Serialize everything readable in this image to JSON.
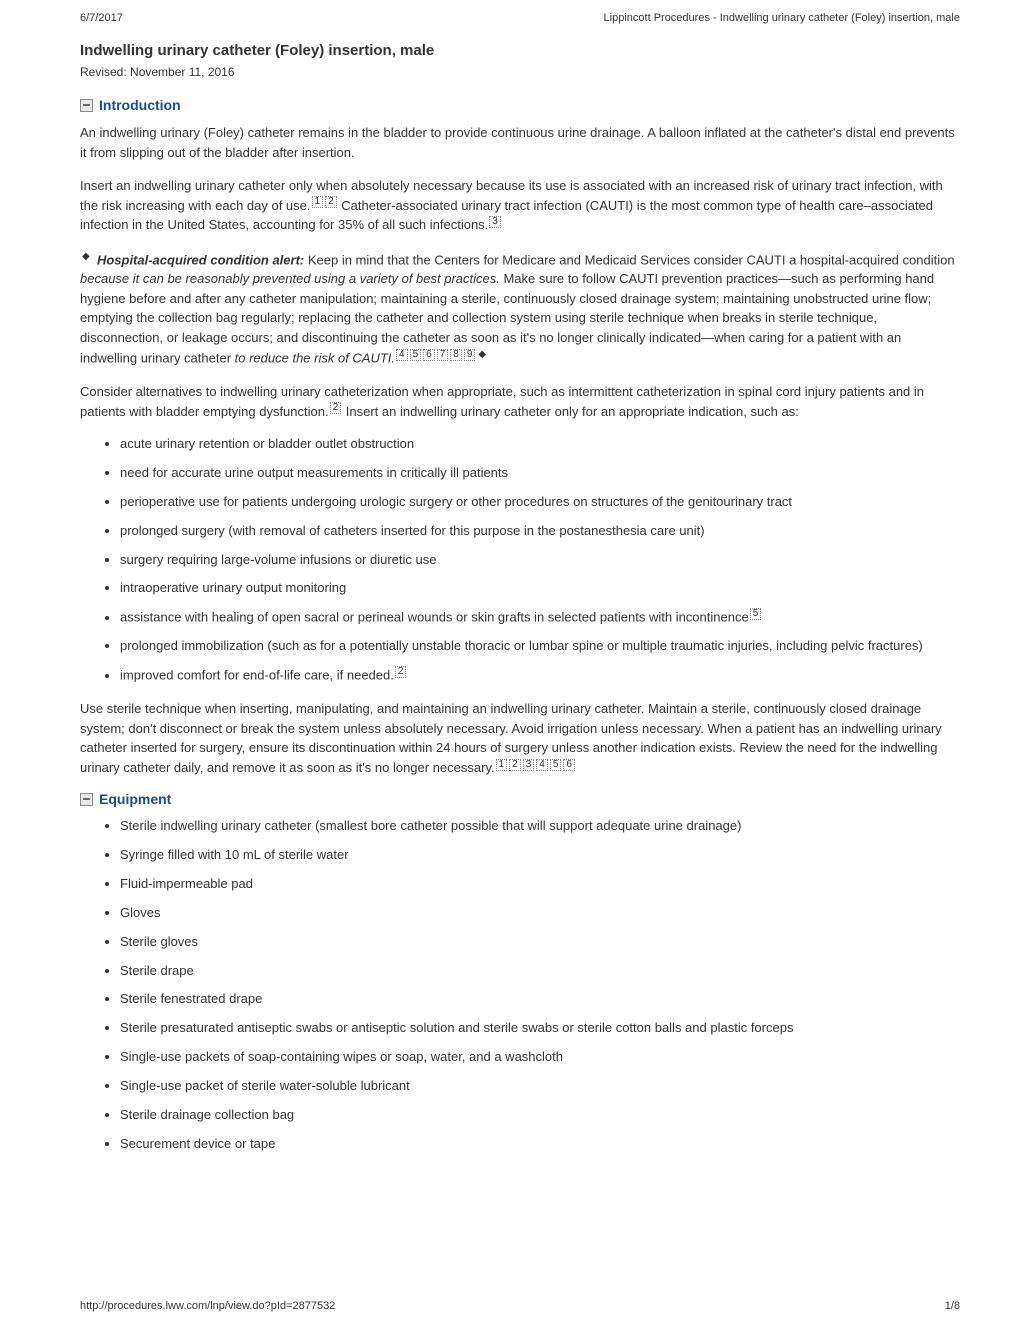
{
  "header": {
    "date": "6/7/2017",
    "title_right": "Lippincott Procedures - Indwelling urinary catheter (Foley) insertion, male"
  },
  "title": "Indwelling urinary catheter (Foley) insertion, male",
  "revised": "Revised: November 11, 2016",
  "sections": {
    "intro": {
      "heading": "Introduction",
      "p1": "An indwelling urinary (Foley) catheter remains in the bladder to provide continuous urine drainage. A balloon inflated at the catheter's distal end prevents it from slipping out of the bladder after insertion.",
      "p2a": "Insert an indwelling urinary catheter only when absolutely necessary because its use is associated with an increased risk of urinary tract infection, with the risk increasing with each day of use.",
      "p2_refs": [
        "1",
        "2"
      ],
      "p2b": " Catheter-associated urinary tract infection (CAUTI) is the most common type of health care–associated infection in the United States, accounting for 35% of all such infections.",
      "p2_ref_end": "3",
      "alert_lead": "Hospital-acquired condition alert:",
      "alert_a": " Keep in mind that the Centers for Medicare and Medicaid Services consider CAUTI a hospital-acquired condition ",
      "alert_i1": "because it can be reasonably prevented using a variety of best practices.",
      "alert_b": " Make sure to follow CAUTI prevention practices—such as performing hand hygiene before and after any catheter manipulation; maintaining a sterile, continuously closed drainage system; maintaining unobstructed urine flow; emptying the collection bag regularly; replacing the catheter and collection system using sterile technique when breaks in sterile technique, disconnection, or leakage occurs; and discontinuing the catheter as soon as it's no longer clinically indicated—when caring for a patient with an indwelling urinary catheter ",
      "alert_i2": "to reduce the risk of CAUTI.",
      "alert_refs": [
        "4",
        "5",
        "6",
        "7",
        "8",
        "9"
      ],
      "p4a": "Consider alternatives to indwelling urinary catheterization when appropriate, such as intermittent catheterization in spinal cord injury patients and in patients with bladder emptying dysfunction.",
      "p4_ref": "2",
      "p4b": " Insert an indwelling urinary catheter only for an appropriate indication, such as:",
      "indications": [
        {
          "text": "acute urinary retention or bladder outlet obstruction"
        },
        {
          "text": "need for accurate urine output measurements in critically ill patients"
        },
        {
          "text": "perioperative use for patients undergoing urologic surgery or other procedures on structures of the genitourinary tract"
        },
        {
          "text": "prolonged surgery (with removal of catheters inserted for this purpose in the postanesthesia care unit)"
        },
        {
          "text": "surgery requiring large-volume infusions or diuretic use"
        },
        {
          "text": "intraoperative urinary output monitoring"
        },
        {
          "text": "assistance with healing of open sacral or perineal wounds or skin grafts in selected patients with incontinence",
          "ref": "5"
        },
        {
          "text": "prolonged immobilization (such as for a potentially unstable thoracic or lumbar spine or multiple traumatic injuries, including pelvic fractures)"
        },
        {
          "text": "improved comfort for end-of-life care, if needed.",
          "ref": "2"
        }
      ],
      "p5a": "Use sterile technique when inserting, manipulating, and maintaining an indwelling urinary catheter. Maintain a sterile, continuously closed drainage system; don't disconnect or break the system unless absolutely necessary. Avoid irrigation unless necessary. When a patient has an indwelling urinary catheter inserted for surgery, ensure its discontinuation within 24 hours of surgery unless another indication exists. Review the need for the indwelling urinary catheter daily, and remove it as soon as it's no longer necessary.",
      "p5_refs": [
        "1",
        "2",
        "3",
        "4",
        "5",
        "6"
      ]
    },
    "equipment": {
      "heading": "Equipment",
      "items": [
        "Sterile indwelling urinary catheter (smallest bore catheter possible that will support adequate urine drainage)",
        "Syringe filled with 10 mL of sterile water",
        "Fluid-impermeable pad",
        "Gloves",
        "Sterile gloves",
        "Sterile drape",
        "Sterile fenestrated drape",
        "Sterile presaturated antiseptic swabs or antiseptic solution and sterile swabs or sterile cotton balls and plastic forceps",
        "Single-use packets of soap-containing wipes or soap, water, and a washcloth",
        "Single-use packet of sterile water-soluble lubricant",
        "Sterile drainage collection bag",
        "Securement device or tape"
      ]
    }
  },
  "footer": {
    "url": "http://procedures.lww.com/lnp/view.do?pId=2877532",
    "page": "1/8"
  }
}
